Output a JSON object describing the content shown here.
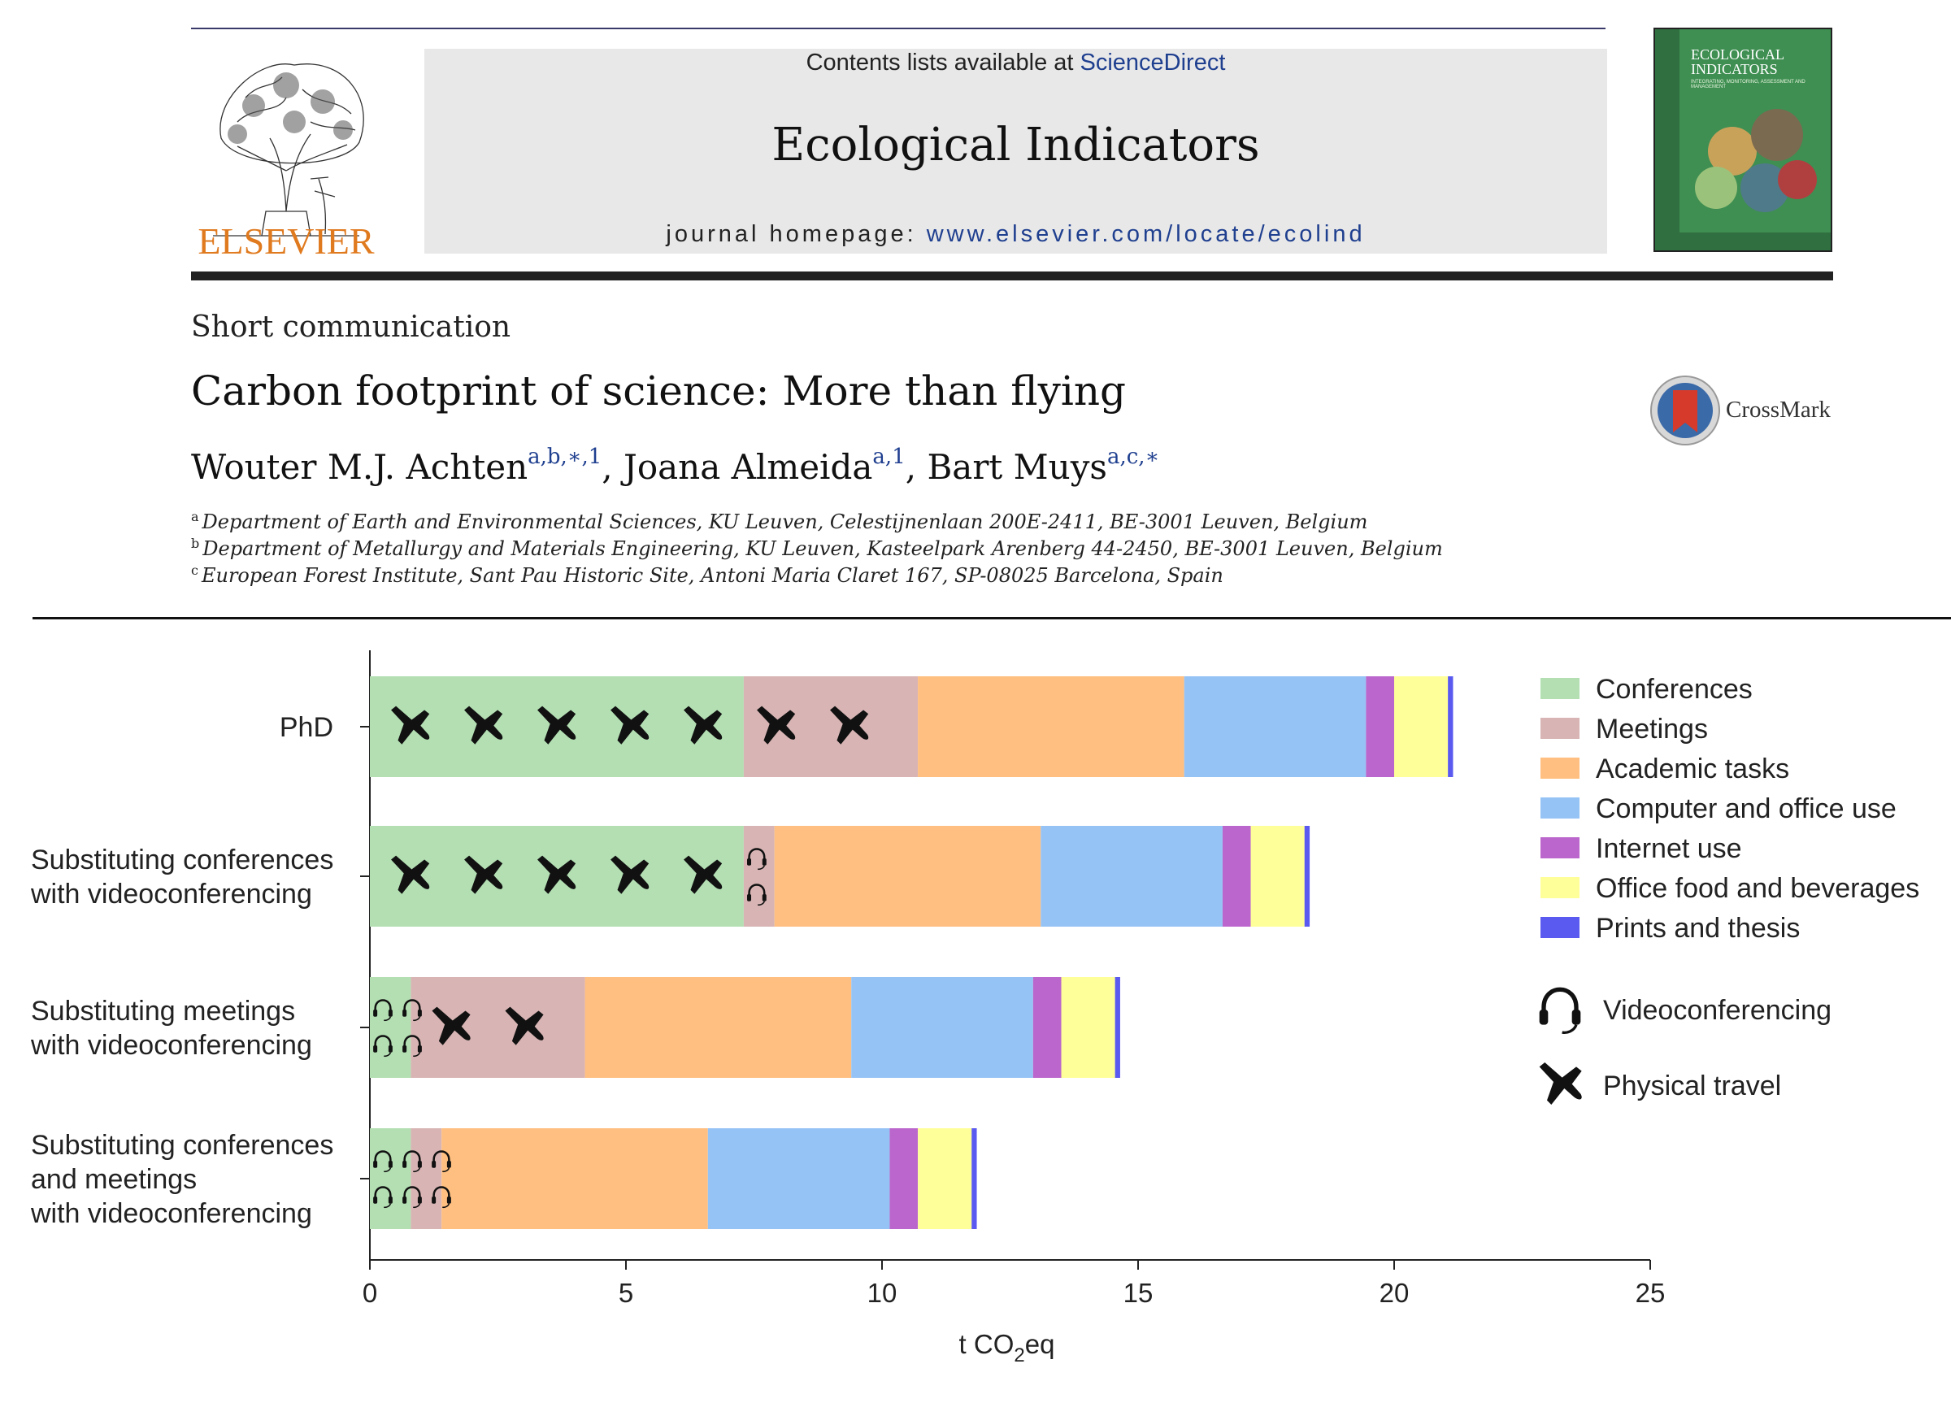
{
  "journal": {
    "contents_prefix": "Contents lists available at ",
    "sciencedirect": "ScienceDirect",
    "name": "Ecological Indicators",
    "homepage_prefix": "journal homepage: ",
    "homepage_url": "www.elsevier.com/locate/ecolind",
    "publisher": "ELSEVIER",
    "cover_title": "ECOLOGICAL INDICATORS",
    "cover_subtitle": "INTEGRATING, MONITORING, ASSESSMENT AND MANAGEMENT"
  },
  "article": {
    "type": "Short communication",
    "title": "Carbon footprint of science: More than flying",
    "crossmark": "CrossMark",
    "authors": [
      {
        "name": "Wouter M.J. Achten",
        "sup": "a,b,∗,1",
        "sep": ", "
      },
      {
        "name": "Joana Almeida",
        "sup": "a,1",
        "sep": ", "
      },
      {
        "name": "Bart Muys",
        "sup": "a,c,∗",
        "sep": ""
      }
    ],
    "affiliations": [
      {
        "mark": "a",
        "text": "Department of Earth and Environmental Sciences, KU Leuven, Celestijnenlaan 200E-2411, BE-3001 Leuven, Belgium"
      },
      {
        "mark": "b",
        "text": "Department of Metallurgy and Materials Engineering, KU Leuven, Kasteelpark Arenberg 44-2450, BE-3001 Leuven, Belgium"
      },
      {
        "mark": "c",
        "text": "European Forest Institute, Sant Pau Historic Site, Antoni Maria Claret 167, SP-08025 Barcelona, Spain"
      }
    ]
  },
  "chart_data": {
    "type": "bar",
    "orientation": "horizontal",
    "stacked": true,
    "xlabel": "t CO2eq",
    "xlim": [
      0,
      25
    ],
    "xticks": [
      0,
      5,
      10,
      15,
      20,
      25
    ],
    "grid": false,
    "legend_position": "right",
    "categories": [
      [
        "PhD"
      ],
      [
        "Substituting conferences",
        "with videoconferencing"
      ],
      [
        "Substituting meetings",
        "with videoconferencing"
      ],
      [
        "Substituting conferences",
        "and meetings",
        "with videoconferencing"
      ]
    ],
    "series": [
      {
        "name": "Conferences",
        "color": "#b3dfb3",
        "values": [
          7.3,
          7.3,
          0.8,
          0.8
        ]
      },
      {
        "name": "Meetings",
        "color": "#d8b4b4",
        "values": [
          3.4,
          0.6,
          3.4,
          0.6
        ]
      },
      {
        "name": "Academic tasks",
        "color": "#ffbf80",
        "values": [
          5.2,
          5.2,
          5.2,
          5.2
        ]
      },
      {
        "name": "Computer and office use",
        "color": "#96c3f5",
        "values": [
          3.55,
          3.55,
          3.55,
          3.55
        ]
      },
      {
        "name": "Internet use",
        "color": "#bb66cc",
        "values": [
          0.55,
          0.55,
          0.55,
          0.55
        ]
      },
      {
        "name": "Office food and beverages",
        "color": "#ffff99",
        "values": [
          1.05,
          1.05,
          1.05,
          1.05
        ]
      },
      {
        "name": "Prints and thesis",
        "color": "#5a5af0",
        "values": [
          0.1,
          0.1,
          0.1,
          0.1
        ]
      }
    ],
    "symbols": [
      {
        "label": "Videoconferencing",
        "icon": "headset-icon"
      },
      {
        "label": "Physical travel",
        "icon": "airplane-icon"
      }
    ]
  }
}
